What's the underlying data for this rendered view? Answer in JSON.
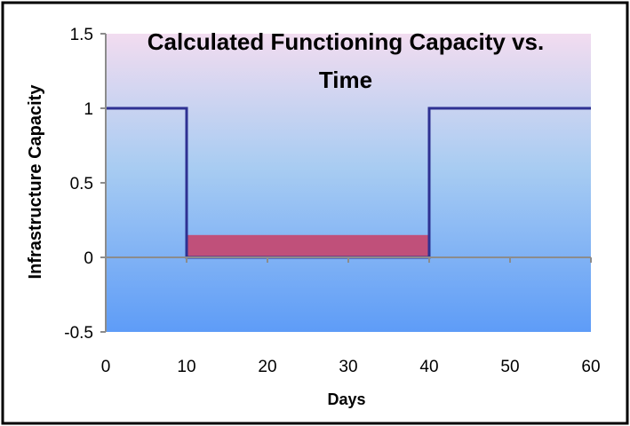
{
  "chart_data": {
    "type": "line",
    "title": "Calculated Functioning Capacity vs. Time",
    "title_lines": [
      "Calculated Functioning Capacity vs.",
      "Time"
    ],
    "xlabel": "Days",
    "ylabel": "Infrastructure Capacity",
    "xlim": [
      0,
      60
    ],
    "ylim": [
      -0.5,
      1.5
    ],
    "x_ticks": [
      0,
      10,
      20,
      30,
      40,
      50,
      60
    ],
    "y_ticks": [
      -0.5,
      0,
      0.5,
      1,
      1.5
    ],
    "x_tick_labels": [
      "0",
      "10",
      "20",
      "30",
      "40",
      "50",
      "60"
    ],
    "y_tick_labels": [
      "-0.5",
      "0",
      "0.5",
      "1",
      "1.5"
    ],
    "grid": false,
    "legend": "none",
    "series": [
      {
        "x": [
          0,
          10,
          10,
          40,
          40,
          60
        ],
        "y": [
          1,
          1,
          0,
          0,
          1,
          1
        ],
        "color": "#2E3192"
      }
    ],
    "shaded_region": {
      "x": [
        10,
        40
      ],
      "y": [
        0,
        0.15
      ],
      "color": "#C0507A"
    },
    "colors": {
      "plot_bg_top": "#F2DCF0",
      "plot_bg_mid": "#A8CCF2",
      "plot_bg_bottom": "#5E9CF7",
      "axis": "#8C8C8C",
      "line": "#2E3192",
      "text": "#000000"
    }
  }
}
